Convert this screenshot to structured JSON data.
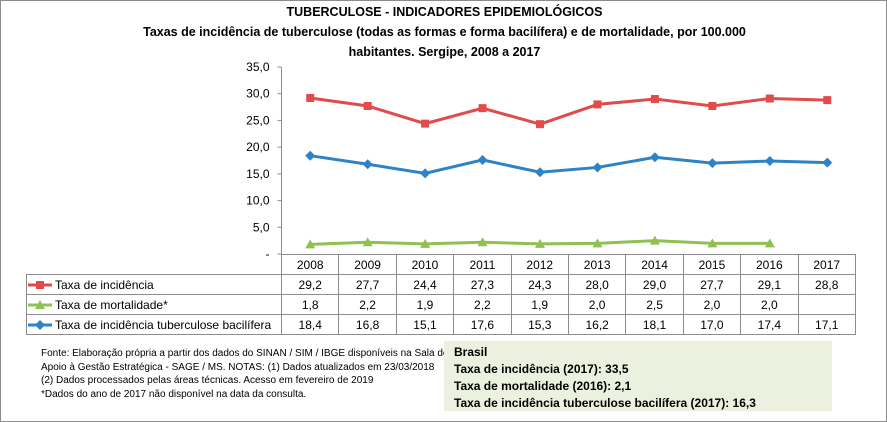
{
  "title": "TUBERCULOSE - INDICADORES EPIDEMIOLÓGICOS",
  "subtitle_line1": "Taxas de incidência de tuberculose (todas as formas e forma bacilífera) e de mortalidade,  por 100.000",
  "subtitle_line2": "habitantes. Sergipe, 2008 a 2017",
  "chart_data": {
    "type": "line",
    "categories": [
      "2008",
      "2009",
      "2010",
      "2011",
      "2012",
      "2013",
      "2014",
      "2015",
      "2016",
      "2017"
    ],
    "ylim": [
      0,
      35
    ],
    "yticks": [
      "-",
      "5,0",
      "10,0",
      "15,0",
      "20,0",
      "25,0",
      "30,0",
      "35,0"
    ],
    "grid": false,
    "legend": "data-table",
    "series": [
      {
        "name": "Taxa de incidência",
        "color": "#e04b4b",
        "marker": "square",
        "values": [
          29.2,
          27.7,
          24.4,
          27.3,
          24.3,
          28.0,
          29.0,
          27.7,
          29.1,
          28.8
        ],
        "labels": [
          "29,2",
          "27,7",
          "24,4",
          "27,3",
          "24,3",
          "28,0",
          "29,0",
          "27,7",
          "29,1",
          "28,8"
        ]
      },
      {
        "name": "Taxa de mortalidade*",
        "color": "#8fc152",
        "marker": "triangle",
        "values": [
          1.8,
          2.2,
          1.9,
          2.2,
          1.9,
          2.0,
          2.5,
          2.0,
          2.0,
          null
        ],
        "labels": [
          "1,8",
          "2,2",
          "1,9",
          "2,2",
          "1,9",
          "2,0",
          "2,5",
          "2,0",
          "2,0",
          ""
        ]
      },
      {
        "name": "Taxa de incidência tuberculose bacilífera",
        "color": "#2e83c6",
        "marker": "diamond",
        "values": [
          18.4,
          16.8,
          15.1,
          17.6,
          15.3,
          16.2,
          18.1,
          17.0,
          17.4,
          17.1
        ],
        "labels": [
          "18,4",
          "16,8",
          "15,1",
          "17,6",
          "15,3",
          "16,2",
          "18,1",
          "17,0",
          "17,4",
          "17,1"
        ]
      }
    ]
  },
  "source": [
    "Fonte: Elaboração própria a partir dos dados do SINAN / SIM / IBGE disponíveis na Sala de",
    "Apoio à Gestão Estratégica - SAGE / MS. NOTAS: (1) Dados atualizados em 23/03/2018",
    "(2) Dados processados pelas áreas técnicas. Acesso em fevereiro de 2019",
    "*Dados do ano de 2017 não disponível na data da consulta."
  ],
  "brasil": {
    "heading": "Brasil",
    "lines": [
      "Taxa de incidência  (2017): 33,5",
      "Taxa de mortalidade (2016): 2,1",
      "Taxa de incidência  tuberculose bacilífera  (2017): 16,3"
    ]
  }
}
